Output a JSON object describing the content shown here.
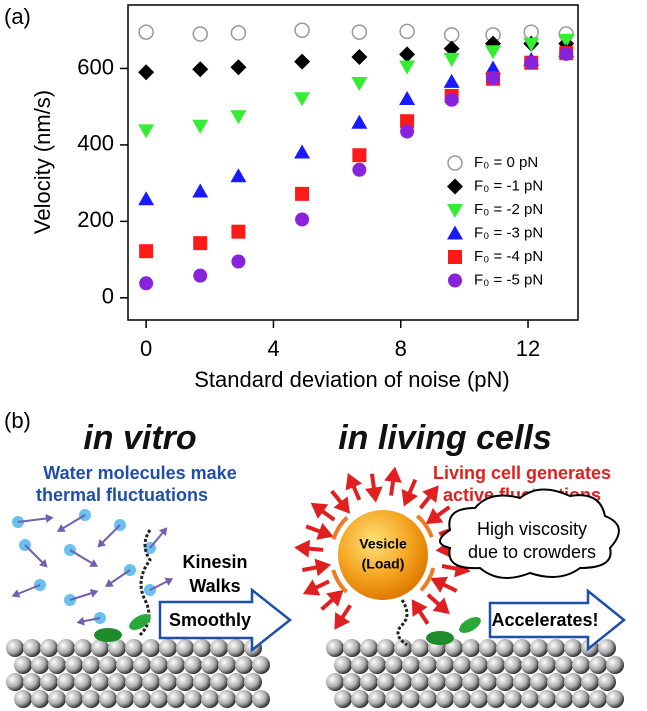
{
  "chart_data": {
    "type": "scatter",
    "panel_label": "(a)",
    "x_label": "Standard deviation of noise (pN)",
    "y_label": "Velocity (nm/s)",
    "x": [
      0,
      1.7,
      2.9,
      4.9,
      6.7,
      8.2,
      9.6,
      10.9,
      12.1,
      13.2
    ],
    "xlim": [
      -0.57,
      13.57
    ],
    "xticks": [
      0,
      4,
      8,
      12
    ],
    "ylim": [
      -58,
      766
    ],
    "yticks": [
      0,
      200,
      400,
      600
    ],
    "series": [
      {
        "name": "F₀ = 0 pN",
        "color": "#999999",
        "marker": "circle-open",
        "values": [
          695,
          690,
          693,
          700,
          695,
          697,
          688,
          688,
          695,
          690
        ]
      },
      {
        "name": "F₀ = -1 pN",
        "color": "#000000",
        "marker": "diamond",
        "values": [
          590,
          598,
          603,
          618,
          630,
          637,
          652,
          665,
          665,
          665
        ]
      },
      {
        "name": "F₀ = -2 pN",
        "color": "#33ee33",
        "marker": "triangle-down",
        "values": [
          438,
          450,
          475,
          522,
          562,
          605,
          625,
          645,
          665,
          675
        ]
      },
      {
        "name": "F₀ = -3 pN",
        "color": "#1a1aff",
        "marker": "triangle-up",
        "values": [
          258,
          278,
          318,
          380,
          458,
          520,
          565,
          600,
          622,
          645
        ]
      },
      {
        "name": "F₀ = -4 pN",
        "color": "#ff1a1a",
        "marker": "square",
        "values": [
          122,
          143,
          173,
          272,
          373,
          462,
          528,
          573,
          615,
          640
        ]
      },
      {
        "name": "F₀ = -5 pN",
        "color": "#8822dd",
        "marker": "circle",
        "values": [
          38,
          58,
          95,
          205,
          335,
          435,
          518,
          575,
          615,
          638
        ]
      }
    ]
  },
  "diagram": {
    "panel_label": "(b)",
    "left_title": "in vitro",
    "right_title": "in living cells",
    "left_caption": [
      "Water molecules make",
      "thermal fluctuations"
    ],
    "right_caption": [
      "Living cell generates",
      "active fluctuations"
    ],
    "cloud": [
      "High viscosity",
      "due to crowders"
    ],
    "vesicle": [
      "Vesicle",
      "(Load)"
    ],
    "kinesin": [
      "Kinesin",
      "Walks"
    ],
    "left_arrow": "Smoothly",
    "right_arrow": "Accelerates!"
  }
}
